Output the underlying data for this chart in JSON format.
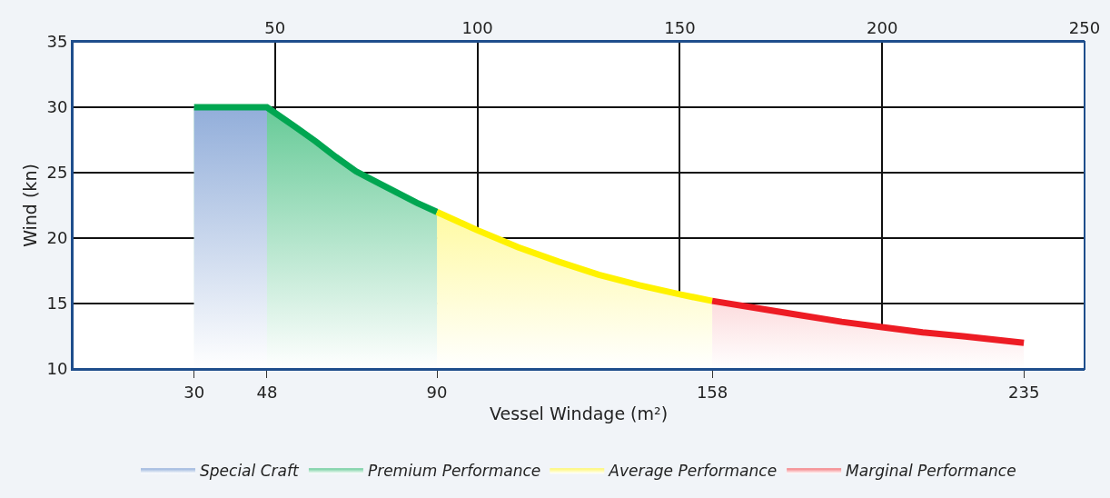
{
  "chart_data": {
    "type": "area",
    "xlabel": "Vessel Windage (m²)",
    "ylabel": "Wind (kn)",
    "xlim": [
      0,
      250
    ],
    "xticks": [
      30,
      48,
      90,
      158,
      235
    ],
    "x2lim": [
      0,
      250
    ],
    "x2ticks": [
      {
        "value": 0,
        "label": null
      },
      50,
      100,
      150,
      200,
      250
    ],
    "ylim": [
      10,
      35
    ],
    "yticks": [
      10,
      15,
      20,
      25,
      30,
      35
    ],
    "grid": true,
    "legend": "bottom",
    "series": [
      {
        "name": "Special Craft",
        "color": "#4a78c2",
        "x": [
          30,
          48
        ],
        "values": [
          30,
          30
        ]
      },
      {
        "name": "Premium Performance",
        "color": "#00a651",
        "x": [
          30,
          48,
          55,
          60,
          65,
          70,
          75,
          80,
          85,
          90
        ],
        "values": [
          30,
          30,
          28.5,
          27.4,
          26.2,
          25.1,
          24.3,
          23.5,
          22.7,
          22
        ]
      },
      {
        "name": "Average Performance",
        "color": "#fff200",
        "x": [
          90,
          100,
          110,
          120,
          130,
          140,
          150,
          158
        ],
        "values": [
          22,
          20.6,
          19.3,
          18.2,
          17.2,
          16.4,
          15.7,
          15.2
        ]
      },
      {
        "name": "Marginal Performance",
        "color": "#ed1c24",
        "x": [
          158,
          170,
          180,
          190,
          200,
          210,
          220,
          235
        ],
        "values": [
          15.2,
          14.6,
          14.1,
          13.6,
          13.2,
          12.8,
          12.5,
          12
        ]
      }
    ]
  }
}
